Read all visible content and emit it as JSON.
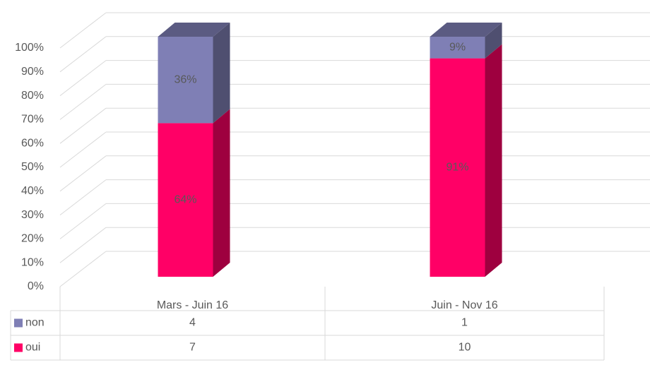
{
  "chart_data": {
    "type": "bar",
    "stacked": true,
    "categories": [
      "Mars - Juin 16",
      "Juin - Nov 16"
    ],
    "series": [
      {
        "name": "oui",
        "color": "#ff0066",
        "values": [
          64,
          91
        ],
        "value_labels": [
          "64%",
          "91%"
        ],
        "counts": [
          7,
          10
        ]
      },
      {
        "name": "non",
        "color": "#7f7fb5",
        "values": [
          36,
          9
        ],
        "value_labels": [
          "36%",
          "9%"
        ],
        "counts": [
          4,
          1
        ]
      }
    ],
    "ylim": [
      0,
      100
    ],
    "yticks": [
      {
        "value": 0,
        "label": "0%"
      },
      {
        "value": 10,
        "label": "10%"
      },
      {
        "value": 20,
        "label": "20%"
      },
      {
        "value": 30,
        "label": "30%"
      },
      {
        "value": 40,
        "label": "40%"
      },
      {
        "value": 50,
        "label": "50%"
      },
      {
        "value": 60,
        "label": "60%"
      },
      {
        "value": 70,
        "label": "70%"
      },
      {
        "value": 80,
        "label": "80%"
      },
      {
        "value": 90,
        "label": "90%"
      },
      {
        "value": 100,
        "label": "100%"
      }
    ],
    "grid": true
  }
}
